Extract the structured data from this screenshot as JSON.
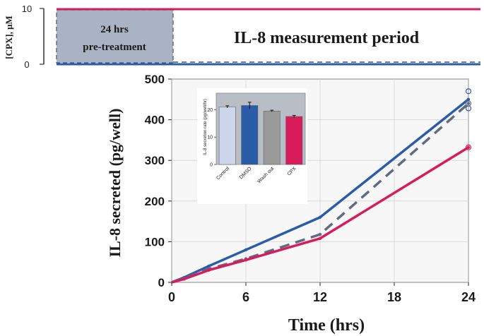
{
  "colors": {
    "cpx": "#d81b5a",
    "dmso": "#2a5ca8",
    "washout": "#5f6b80",
    "control_bar": "#cdd6ea",
    "washout_bar": "#9a9a9a",
    "pretreatment_box": "#a9b3c3",
    "inset_bg": "#b9bdc6",
    "plot_bg": "#f7f7f7"
  },
  "timeline": {
    "ylabel": "[CPX], μM",
    "y_top_tick": "10",
    "y_bottom_tick": "0",
    "pretreatment_label_line1": "24 hrs",
    "pretreatment_label_line2": "pre-treatment",
    "period_label": "IL-8 measurement period"
  },
  "chart_data": [
    {
      "type": "line",
      "xlabel": "Time (hrs)",
      "ylabel": "IL-8 secreted (pg/well)",
      "xlim": [
        0,
        24
      ],
      "ylim": [
        0,
        500
      ],
      "x_ticks": [
        0,
        6,
        12,
        18,
        24
      ],
      "y_ticks": [
        0,
        100,
        200,
        300,
        400,
        500
      ],
      "grid": true,
      "series": [
        {
          "key": "dmso",
          "x": [
            0,
            1,
            3,
            6,
            12,
            24
          ],
          "y": [
            0,
            12,
            40,
            80,
            160,
            450
          ]
        },
        {
          "key": "washout",
          "x": [
            0,
            1,
            3,
            6,
            12,
            24
          ],
          "y": [
            0,
            10,
            33,
            58,
            118,
            440
          ]
        },
        {
          "key": "cpx",
          "x": [
            0,
            1,
            3,
            6,
            12,
            24
          ],
          "y": [
            0,
            8,
            30,
            55,
            108,
            332
          ]
        }
      ],
      "markers": [
        {
          "key": "dmso",
          "x": 24,
          "y": 470
        },
        {
          "key": "dmso",
          "x": 24,
          "y": 428
        },
        {
          "key": "washout",
          "x": 24,
          "y": 440
        },
        {
          "key": "cpx",
          "x": 24,
          "y": 332
        }
      ]
    },
    {
      "type": "bar",
      "ylabel": "IL-8 secretion rate (pg/well/hr)",
      "categories": [
        "Control",
        "DMSO",
        "Wash out",
        "CPX"
      ],
      "values": [
        21,
        21.5,
        19.5,
        17.5
      ],
      "errors": [
        0.4,
        1.2,
        0.3,
        0.4
      ],
      "ylim": [
        0,
        26
      ],
      "y_ticks": [
        0,
        10,
        20
      ],
      "bar_colors": [
        "#cdd6ea",
        "#2a5ca8",
        "#9a9a9a",
        "#d81b5a"
      ]
    }
  ]
}
